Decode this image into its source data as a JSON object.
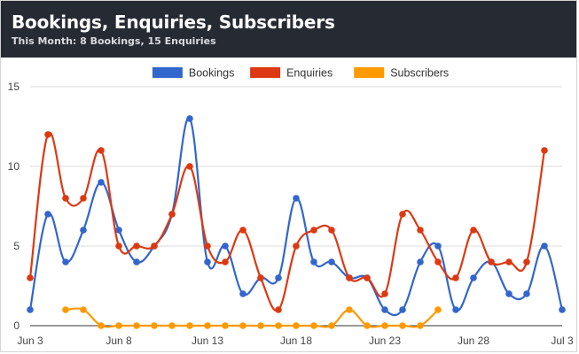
{
  "header": {
    "title": "Bookings, Enquiries, Subscribers",
    "subtitle": "This Month: 8 Bookings, 15 Enquiries"
  },
  "chart_data": {
    "type": "line",
    "x": [
      "Jun 3",
      "Jun 4",
      "Jun 5",
      "Jun 6",
      "Jun 7",
      "Jun 8",
      "Jun 9",
      "Jun 10",
      "Jun 11",
      "Jun 12",
      "Jun 13",
      "Jun 14",
      "Jun 15",
      "Jun 16",
      "Jun 17",
      "Jun 18",
      "Jun 19",
      "Jun 20",
      "Jun 21",
      "Jun 22",
      "Jun 23",
      "Jun 24",
      "Jun 25",
      "Jun 26",
      "Jun 27",
      "Jun 28",
      "Jun 29",
      "Jun 30",
      "Jul 1",
      "Jul 2",
      "Jul 3"
    ],
    "x_tick_labels": [
      "Jun 3",
      "Jun 8",
      "Jun 13",
      "Jun 18",
      "Jun 23",
      "Jun 28",
      "Jul 3"
    ],
    "y_tick_labels": [
      "0",
      "5",
      "10",
      "15"
    ],
    "ylim": [
      0,
      15
    ],
    "grid": true,
    "legend_position": "top-center",
    "series": [
      {
        "name": "Bookings",
        "color": "#3366cc",
        "values": [
          1,
          7,
          4,
          6,
          9,
          6,
          4,
          5,
          7,
          13,
          4,
          5,
          2,
          3,
          3,
          8,
          4,
          4,
          3,
          3,
          1,
          1,
          4,
          5,
          1,
          3,
          4,
          2,
          2,
          5,
          1
        ]
      },
      {
        "name": "Enquiries",
        "color": "#dc3912",
        "values": [
          3,
          12,
          8,
          8,
          11,
          5,
          5,
          5,
          7,
          10,
          5,
          4,
          6,
          3,
          1,
          5,
          6,
          6,
          3,
          3,
          2,
          7,
          6,
          4,
          3,
          6,
          4,
          4,
          4,
          11,
          null
        ]
      },
      {
        "name": "Subscribers",
        "color": "#ff9900",
        "values": [
          null,
          null,
          1,
          1,
          0,
          0,
          0,
          0,
          0,
          0,
          0,
          0,
          0,
          0,
          0,
          0,
          0,
          0,
          1,
          0,
          0,
          0,
          0,
          1,
          null,
          null,
          null,
          null,
          null,
          null,
          null
        ]
      }
    ]
  }
}
